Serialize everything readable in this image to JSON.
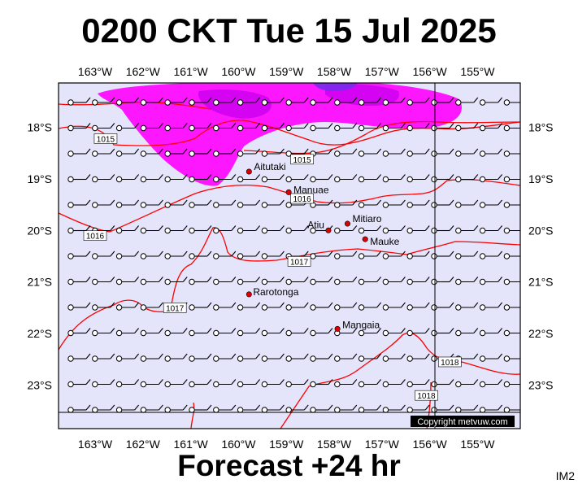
{
  "title": "0200 CKT Tue 15 Jul 2025",
  "footer": "Forecast +24 hr",
  "chart_code": "IM2",
  "copyright": "Copyright metvuw.com",
  "colors": {
    "plot_background": "#e4e4fa",
    "isobar": "#ff0000",
    "rain_light": "#ff00ff",
    "rain_moderate": "#cc00ee",
    "rain_heavy": "#7a2af0",
    "town_marker": "#dd0000"
  },
  "lon_ticks": [
    "163°W",
    "162°W",
    "161°W",
    "160°W",
    "159°W",
    "158°W",
    "157°W",
    "156°W",
    "155°W"
  ],
  "lat_ticks": [
    "18°S",
    "19°S",
    "20°S",
    "21°S",
    "22°S",
    "23°S"
  ],
  "towns": [
    {
      "name": "Aitutaki",
      "lon": -159.78,
      "lat": -18.86
    },
    {
      "name": "Manuae",
      "lon": -158.95,
      "lat": -19.26
    },
    {
      "name": "Mitiaro",
      "lon": -157.72,
      "lat": -19.87
    },
    {
      "name": "Atiu",
      "lon": -158.12,
      "lat": -20.0
    },
    {
      "name": "Mauke",
      "lon": -157.35,
      "lat": -20.17
    },
    {
      "name": "Rarotonga",
      "lon": -159.78,
      "lat": -21.24
    },
    {
      "name": "Mangaia",
      "lon": -157.93,
      "lat": -21.91
    }
  ],
  "isobar_labels": [
    {
      "text": "1015",
      "lon": -162.78,
      "lat": -18.22
    },
    {
      "text": "1015",
      "lon": -158.67,
      "lat": -18.62
    },
    {
      "text": "1016",
      "lon": -158.67,
      "lat": -19.38
    },
    {
      "text": "1016",
      "lon": -163.0,
      "lat": -20.1
    },
    {
      "text": "1017",
      "lon": -158.73,
      "lat": -20.6
    },
    {
      "text": "1017",
      "lon": -161.33,
      "lat": -21.5
    },
    {
      "text": "1018",
      "lon": -155.58,
      "lat": -22.55
    },
    {
      "text": "1018",
      "lon": -156.07,
      "lat": -23.2
    }
  ]
}
